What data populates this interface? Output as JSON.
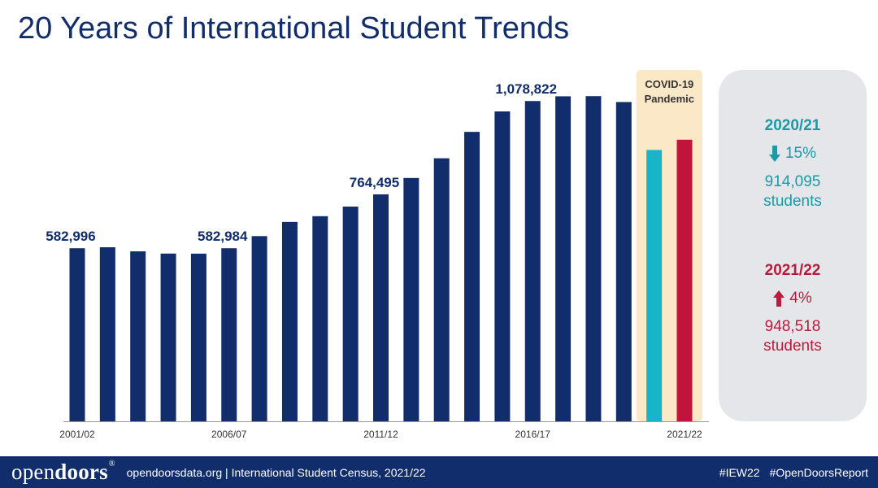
{
  "title": "20 Years of International Student Trends",
  "chart_data": {
    "type": "bar",
    "categories": [
      "2001/02",
      "2002/03",
      "2003/04",
      "2004/05",
      "2005/06",
      "2006/07",
      "2007/08",
      "2008/09",
      "2009/10",
      "2010/11",
      "2011/12",
      "2012/13",
      "2013/14",
      "2014/15",
      "2015/16",
      "2016/17",
      "2017/18",
      "2018/19",
      "2019/20",
      "2020/21",
      "2021/22"
    ],
    "x_tick_labels": [
      "2001/02",
      "2006/07",
      "2011/12",
      "2016/17",
      "2021/22"
    ],
    "values": [
      582996,
      586323,
      572509,
      565039,
      564766,
      582984,
      623805,
      671616,
      690923,
      723277,
      764495,
      819644,
      886052,
      974926,
      1043839,
      1078822,
      1094792,
      1095299,
      1075496,
      914095,
      948518
    ],
    "data_labels": [
      {
        "category": "2001/02",
        "text": "582,996"
      },
      {
        "category": "2006/07",
        "text": "582,984"
      },
      {
        "category": "2011/12",
        "text": "764,495"
      },
      {
        "category": "2016/17",
        "text": "1,078,822"
      }
    ],
    "ylim": [
      0,
      1200000
    ],
    "colors": {
      "default": "#112d6b",
      "2020/21": "#17b5c7",
      "2021/22": "#c0143c"
    },
    "annotation": {
      "text": [
        "COVID-19",
        "Pandemic"
      ],
      "span": [
        "2020/21",
        "2021/22"
      ],
      "color": "#fbe8c7"
    }
  },
  "stats": {
    "a": {
      "year": "2020/21",
      "change": "15%",
      "value": "914,095",
      "unit": "students",
      "direction": "down"
    },
    "b": {
      "year": "2021/22",
      "change": "4%",
      "value": "948,518",
      "unit": "students",
      "direction": "up"
    }
  },
  "footer": {
    "logo_open": "open",
    "logo_doors": "doors",
    "logo_mark": "®",
    "text": "opendoorsdata.org  |  International Student Census, 2021/22",
    "tags": [
      "#IEW22",
      "#OpenDoorsReport"
    ]
  },
  "colors": {
    "navy": "#112d6b",
    "teal": "#1a9aa6",
    "red": "#b71c3c",
    "panel": "#e4e6e9"
  }
}
